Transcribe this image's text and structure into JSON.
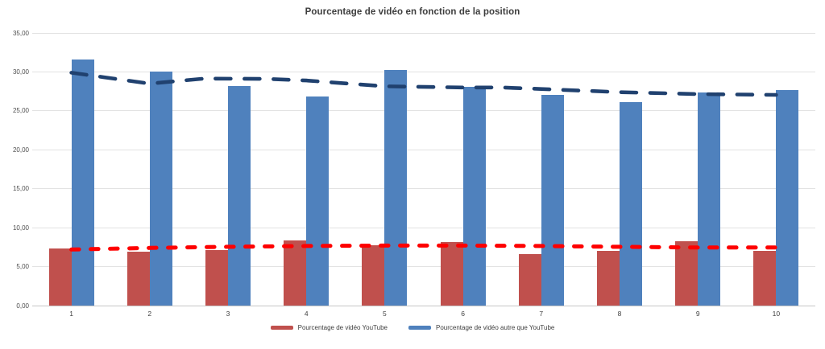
{
  "chart_data": {
    "type": "bar",
    "title": "Pourcentage de vidéo en fonction de la position",
    "xlabel": "",
    "ylabel": "",
    "categories": [
      "1",
      "2",
      "3",
      "4",
      "5",
      "6",
      "7",
      "8",
      "9",
      "10"
    ],
    "series": [
      {
        "name": "Pourcentage de vidéo YouTube",
        "color": "#c0504d",
        "values": [
          7.3,
          6.9,
          7.1,
          8.4,
          7.7,
          8.2,
          6.6,
          7.0,
          8.3,
          7.0
        ]
      },
      {
        "name": "Pourcentage de vidéo autre que YouTube",
        "color": "#4f81bd",
        "values": [
          31.6,
          30.0,
          28.2,
          26.8,
          30.3,
          28.1,
          27.1,
          26.1,
          27.4,
          27.7
        ]
      }
    ],
    "trendlines": [
      {
        "series": "Pourcentage de vidéo autre que YouTube",
        "style": "dashed",
        "color": "#20416f",
        "points": [
          [
            1,
            29.9
          ],
          [
            2,
            28.5
          ],
          [
            2.7,
            29.15
          ],
          [
            3.5,
            29.1
          ],
          [
            4,
            28.9
          ],
          [
            5,
            28.15
          ],
          [
            6,
            28.0
          ],
          [
            6.5,
            28.0
          ],
          [
            7,
            27.8
          ],
          [
            8,
            27.4
          ],
          [
            9,
            27.15
          ],
          [
            10,
            27.05
          ]
        ]
      },
      {
        "series": "Pourcentage de vidéo YouTube",
        "style": "dashed",
        "color": "#fe0000",
        "points": [
          [
            1,
            7.2
          ],
          [
            2,
            7.4
          ],
          [
            3,
            7.55
          ],
          [
            4,
            7.65
          ],
          [
            5,
            7.7
          ],
          [
            6,
            7.7
          ],
          [
            7,
            7.65
          ],
          [
            8,
            7.55
          ],
          [
            9,
            7.45
          ],
          [
            10,
            7.45
          ]
        ]
      }
    ],
    "y_axis": {
      "min": 0,
      "max": 35,
      "tick_values": [
        0,
        5,
        10,
        15,
        20,
        25,
        30,
        35
      ],
      "tick_labels": [
        "0,00",
        "5,00",
        "10,00",
        "15,00",
        "20,00",
        "25,00",
        "30,00",
        "35,00"
      ]
    },
    "legend": {
      "position": "bottom",
      "entries": [
        "Pourcentage de vidéo YouTube",
        "Pourcentage de vidéo autre que YouTube"
      ]
    },
    "grid": true
  }
}
